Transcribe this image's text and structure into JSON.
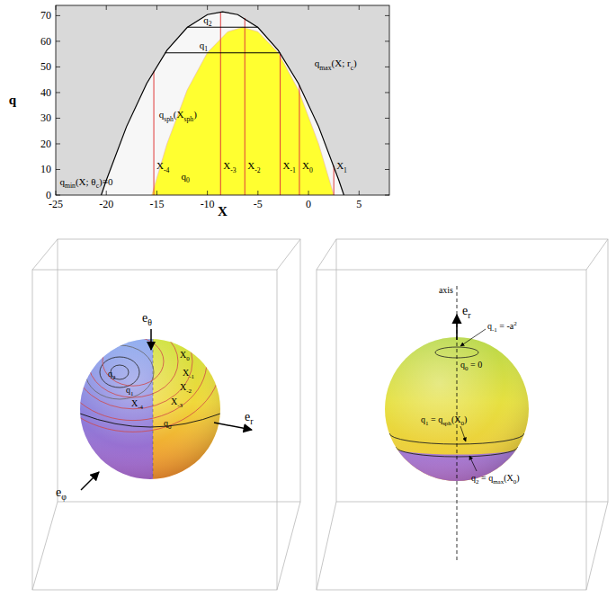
{
  "chart_data": {
    "type": "area",
    "x_label": "X",
    "y_label": "q",
    "xlim": [
      -25,
      8
    ],
    "ylim": [
      0,
      74
    ],
    "xticks": [
      -25,
      -20,
      -15,
      -10,
      -5,
      0,
      5
    ],
    "yticks": [
      0,
      10,
      20,
      30,
      40,
      50,
      60,
      70
    ],
    "series": [
      {
        "type": "area",
        "color": "#ffff30",
        "x": [
          -15.5,
          -14,
          -12,
          -10,
          -8,
          -6.5,
          -5,
          -3,
          -1,
          1,
          2.5
        ],
        "values": [
          0,
          20,
          41,
          55.6,
          63.7,
          65.5,
          63.7,
          55.6,
          41,
          20,
          0
        ]
      },
      {
        "type": "line",
        "color": "#000000",
        "x": [
          -20.5,
          -20,
          -18,
          -16,
          -14,
          -12,
          -10,
          -8.5,
          -7,
          -5,
          -3,
          -1,
          1,
          3,
          3.5
        ],
        "values": [
          0,
          5.8,
          26.7,
          43.6,
          56.5,
          65.4,
          70.4,
          71.5,
          70.4,
          65.4,
          56.5,
          43.6,
          26.7,
          5.8,
          0
        ]
      }
    ],
    "verticals": [
      {
        "label": [
          "X",
          {
            "sub": "-4"
          }
        ],
        "x": -15.3,
        "top": 48.5,
        "color": "#e03a3a"
      },
      {
        "label": [
          "X",
          {
            "sub": "-3"
          }
        ],
        "x": -8.7,
        "top": 71.5,
        "color": "#e03a3a"
      },
      {
        "label": [
          "X",
          {
            "sub": "-2"
          }
        ],
        "x": -6.3,
        "top": 69.1,
        "color": "#e03a3a"
      },
      {
        "label": [
          "X",
          {
            "sub": "-1"
          }
        ],
        "x": -2.8,
        "top": 55.4,
        "color": "#e03a3a"
      },
      {
        "label": [
          "X",
          {
            "sub": "0"
          }
        ],
        "x": -0.9,
        "top": 42.8,
        "color": "#e03a3a"
      },
      {
        "label": [
          "X",
          {
            "sub": "1"
          }
        ],
        "x": 2.5,
        "top": 11.4,
        "color": "#e03a3a"
      }
    ],
    "horizontals": [
      {
        "label": [
          "q",
          {
            "sub": "1"
          }
        ],
        "y": 55.5,
        "x": [
          -14.2,
          -2.8
        ]
      },
      {
        "label": [
          "q",
          {
            "sub": "2"
          }
        ],
        "y": 65.5,
        "x": [
          -12,
          -5
        ]
      }
    ],
    "annotations": [
      {
        "label": [
          "q",
          {
            "sub": "max"
          },
          "(X; r",
          {
            "sub": "c"
          },
          ")"
        ]
      },
      {
        "label": [
          "q",
          {
            "sub": "sph"
          },
          "(X",
          {
            "sub": "sph"
          },
          ")"
        ]
      },
      {
        "label": [
          "q",
          {
            "sub": "min"
          },
          "(X; θ",
          {
            "sub": "c"
          },
          ")≡0"
        ]
      },
      {
        "label": [
          "q",
          {
            "sub": "0"
          }
        ]
      }
    ]
  },
  "diagrams": [
    {
      "arrow_labels": [
        [
          "e",
          {
            "sub": "θ"
          }
        ],
        [
          "e",
          {
            "sub": "φ"
          }
        ],
        [
          "e",
          {
            "sub": "r"
          }
        ]
      ],
      "curve_labels": [
        [
          "q",
          {
            "sub": "2"
          }
        ],
        [
          "q",
          {
            "sub": "1"
          }
        ],
        [
          "X",
          {
            "sub": "0"
          }
        ],
        [
          "X",
          {
            "sub": "-1"
          }
        ],
        [
          "X",
          {
            "sub": "-2"
          }
        ],
        [
          "X",
          {
            "sub": "-3"
          }
        ],
        [
          "X",
          {
            "sub": "-4"
          }
        ],
        [
          "q",
          {
            "sub": "0"
          }
        ]
      ]
    },
    {
      "axis_label": "axis",
      "arrow_labels": [
        [
          "e",
          {
            "sub": "r"
          }
        ]
      ],
      "circle_labels": [
        [
          "q",
          {
            "sub": "-1"
          },
          " = -a",
          {
            "sup": "2"
          }
        ],
        [
          "q",
          {
            "sub": "0"
          },
          " = 0"
        ],
        [
          "q",
          {
            "sub": "1"
          },
          " = q",
          {
            "sub": "sph"
          },
          "(X",
          {
            "sub": "0"
          },
          ")"
        ],
        [
          "q",
          {
            "sub": "2"
          },
          " = q",
          {
            "sub": "max"
          },
          "(X",
          {
            "sub": "0"
          },
          ")"
        ]
      ]
    }
  ]
}
